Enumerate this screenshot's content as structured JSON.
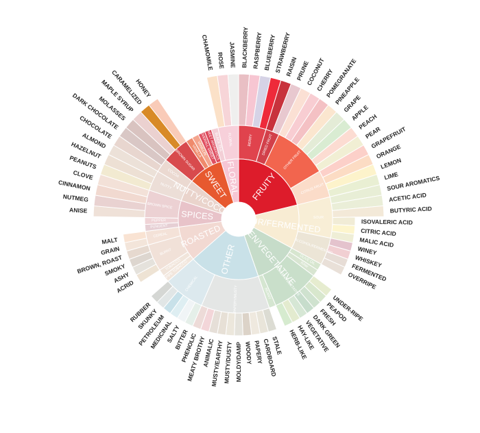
{
  "chart_data": {
    "type": "sunburst",
    "title": "",
    "categories": [
      {
        "name": "FRUITY",
        "color": "#dd1c2b",
        "children": [
          {
            "name": "BERRY",
            "color": "#e0434d",
            "children": [
              {
                "name": "BLACKBERRY",
                "color": "#e9bfc4"
              },
              {
                "name": "RASPBERRY",
                "color": "#f7c6d2"
              },
              {
                "name": "BLUEBERRY",
                "color": "#d6d3e6"
              },
              {
                "name": "STRAWBERRY",
                "color": "#ee2a3a"
              }
            ]
          },
          {
            "name": "DRIED FRUIT",
            "color": "#d2404a",
            "children": [
              {
                "name": "RAISIN",
                "color": "#c8323c"
              },
              {
                "name": "PRUNE",
                "color": "#e8c8cf"
              }
            ]
          },
          {
            "name": "OTHER FRUIT",
            "color": "#f2654e",
            "children": [
              {
                "name": "COCONUT",
                "color": "#fbe0d4"
              },
              {
                "name": "CHERRY",
                "color": "#f8cdd2"
              },
              {
                "name": "POMEGRANATE",
                "color": "#f4c1c4"
              },
              {
                "name": "PINEAPPLE",
                "color": "#fbe6cf"
              },
              {
                "name": "GRAPE",
                "color": "#e4ecd7"
              },
              {
                "name": "APPLE",
                "color": "#d9ecd2"
              },
              {
                "name": "PEACH",
                "color": "#fcdcd2"
              },
              {
                "name": "PEAR",
                "color": "#f1efd4"
              }
            ]
          },
          {
            "name": "CITRUS FRUIT",
            "color": "#fbdcc9",
            "children": [
              {
                "name": "GRAPEFRUIT",
                "color": "#fcd0c9"
              },
              {
                "name": "ORANGE",
                "color": "#fcdcc4"
              },
              {
                "name": "LEMON",
                "color": "#fdf3cb"
              },
              {
                "name": "LIME",
                "color": "#e9efd3"
              }
            ]
          }
        ]
      },
      {
        "name": "SOUR/FERMENTED",
        "color": "#f8ecd3",
        "children": [
          {
            "name": "SOUR",
            "color": "#f8eed6",
            "children": [
              {
                "name": "SOUR AROMATICS",
                "color": "#e8eed6"
              },
              {
                "name": "ACETIC ACID",
                "color": "#eaeed8"
              },
              {
                "name": "BUTYRIC ACID",
                "color": "#f3e9d8"
              },
              {
                "name": "ISOVALERIC ACID",
                "color": "#f1ecd6"
              },
              {
                "name": "CITRIC ACID",
                "color": "#fdf5cd"
              },
              {
                "name": "MALIC ACID",
                "color": "#efeed6"
              }
            ]
          },
          {
            "name": "ALCOHOL/FERMENTED",
            "color": "#ece5d6",
            "children": [
              {
                "name": "WINEY",
                "color": "#e4c3cd"
              },
              {
                "name": "WHISKEY",
                "color": "#f1cfd2"
              },
              {
                "name": "FERMENTED",
                "color": "#e7ddd6"
              },
              {
                "name": "OVERRIPE",
                "color": "#e9e0d8"
              }
            ]
          }
        ]
      },
      {
        "name": "GREEN/VEGETATIVE",
        "color": "#c6dcc9",
        "children": [
          {
            "name": "OLIVE OIL",
            "color": "#d7e6cf"
          },
          {
            "name": "RAW",
            "color": "#d8e5d1"
          },
          {
            "name": "GREEN/VEGETATIVE",
            "color": "#c9dfca",
            "children": [
              {
                "name": "UNDER-RIPE",
                "color": "#e6eccf"
              },
              {
                "name": "PEAPOD",
                "color": "#d8e7cd"
              },
              {
                "name": "FRESH",
                "color": "#cfe2cf"
              },
              {
                "name": "DARK GREEN",
                "color": "#c7ddcc"
              },
              {
                "name": "VEGETATIVE",
                "color": "#d6e7d5"
              },
              {
                "name": "HAY-LIKE",
                "color": "#e3ebcf"
              },
              {
                "name": "HERB-LIKE",
                "color": "#d6ebcf"
              }
            ]
          },
          {
            "name": "BEANY",
            "color": "#d5e6d1"
          }
        ]
      },
      {
        "name": "OTHER",
        "color": "#c9e1e8",
        "children": [
          {
            "name": "PAPERY/MUSTY",
            "color": "#e4e6e5",
            "children": [
              {
                "name": "STALE",
                "color": "#dcdcd3"
              },
              {
                "name": "CARDBOARD",
                "color": "#e9e5da"
              },
              {
                "name": "PAPERY",
                "color": "#efe9df"
              },
              {
                "name": "WOODY",
                "color": "#dcd3c8"
              },
              {
                "name": "MOLDY/DAMP",
                "color": "#e5e3dc"
              },
              {
                "name": "MUSTY/DUSTY",
                "color": "#ece7dc"
              },
              {
                "name": "MUSTY/EARTHY",
                "color": "#e7e0d6"
              },
              {
                "name": "ANIMALIC",
                "color": "#e6dfd8"
              },
              {
                "name": "MEATY BROTHY",
                "color": "#f3d6d9"
              },
              {
                "name": "PHENOLIC",
                "color": "#eddbd8"
              }
            ]
          },
          {
            "name": "CHEMICAL",
            "color": "#dce9ee",
            "children": [
              {
                "name": "BITTER",
                "color": "#e5efe9"
              },
              {
                "name": "SALTY",
                "color": "#f0f4f6"
              },
              {
                "name": "MEDICINAL",
                "color": "#deeef2"
              },
              {
                "name": "PETROLEUM",
                "color": "#c8e1e9"
              },
              {
                "name": "SKUNKY",
                "color": "#e1e6e6"
              },
              {
                "name": "RUBBER",
                "color": "#d5d7d4"
              }
            ]
          }
        ]
      },
      {
        "name": "ROASTED",
        "color": "#f2d9d2",
        "children": [
          {
            "name": "PIPE TOBACCO",
            "color": "#f2e6dc"
          },
          {
            "name": "TOBACCO",
            "color": "#f1e5db"
          },
          {
            "name": "BURNT",
            "color": "#f1e1d8",
            "children": [
              {
                "name": "ACRID",
                "color": "#eee3d4"
              },
              {
                "name": "ASHY",
                "color": "#e5e2dc"
              },
              {
                "name": "SMOKY",
                "color": "#ddd6cf"
              },
              {
                "name": "BROWN, ROAST",
                "color": "#e6d9cf"
              }
            ]
          },
          {
            "name": "CEREAL",
            "color": "#f4e2d8",
            "children": [
              {
                "name": "GRAIN",
                "color": "#f3e5da"
              },
              {
                "name": "MALT",
                "color": "#f9e3d3"
              }
            ]
          }
        ]
      },
      {
        "name": "SPICES",
        "color": "#e8c3c9",
        "children": [
          {
            "name": "PUNGENT",
            "color": "#e6cfd4"
          },
          {
            "name": "PEPPER",
            "color": "#efd3d6"
          },
          {
            "name": "BROWN SPICE",
            "color": "#ecd1d3",
            "children": [
              {
                "name": "ANISE",
                "color": "#efe1d8"
              },
              {
                "name": "NUTMEG",
                "color": "#e9d2d1"
              },
              {
                "name": "CINNAMON",
                "color": "#f1d9d0"
              },
              {
                "name": "CLOVE",
                "color": "#f3e1d8"
              }
            ]
          }
        ]
      },
      {
        "name": "NUTTY/COCOA",
        "color": "#ead4cc",
        "children": [
          {
            "name": "NUTTY",
            "color": "#ecded7",
            "children": [
              {
                "name": "PEANUTS",
                "color": "#f2ead1"
              },
              {
                "name": "HAZELNUT",
                "color": "#ede0d4"
              },
              {
                "name": "ALMOND",
                "color": "#ece1d8"
              }
            ]
          },
          {
            "name": "COCOA",
            "color": "#ebd9d1",
            "children": [
              {
                "name": "CHOCOLATE",
                "color": "#e8d6cf"
              },
              {
                "name": "DARK CHOCOLATE",
                "color": "#d9c7c5"
              }
            ]
          }
        ]
      },
      {
        "name": "SWEET",
        "color": "#e7592f",
        "children": [
          {
            "name": "BROWN SUGAR",
            "color": "#d84a4d",
            "children": [
              {
                "name": "MOLASSES",
                "color": "#d9c3c0"
              },
              {
                "name": "MAPLE SYRUP",
                "color": "#ebd1d0"
              },
              {
                "name": "CARAMELIZED",
                "color": "#d88a27"
              },
              {
                "name": "HONEY",
                "color": "#f9cbb8"
              }
            ]
          },
          {
            "name": "VANILLA",
            "color": "#ef8a6c"
          },
          {
            "name": "VANILLIN",
            "color": "#f4a58e"
          },
          {
            "name": "OVERALL SWEET",
            "color": "#e04f60"
          },
          {
            "name": "SWEET AROMATICS",
            "color": "#dc4a5c"
          }
        ]
      },
      {
        "name": "FLORAL",
        "color": "#f6c6d4",
        "children": [
          {
            "name": "BLACK TEA",
            "color": "#f3cfd6"
          },
          {
            "name": "FLORAL",
            "color": "#f7d0da",
            "children": [
              {
                "name": "CHAMOMILE",
                "color": "#fbe1c8"
              },
              {
                "name": "ROSE",
                "color": "#f7d5d8"
              },
              {
                "name": "JASMINE",
                "color": "#efefee"
              }
            ]
          }
        ]
      }
    ]
  }
}
